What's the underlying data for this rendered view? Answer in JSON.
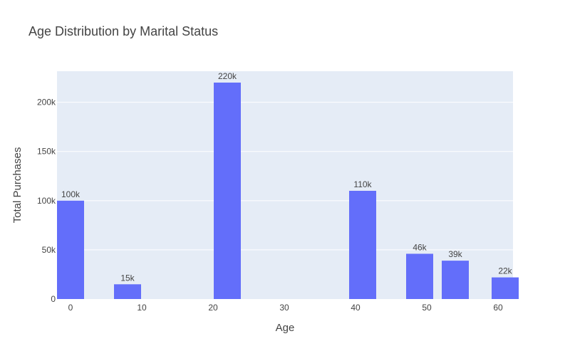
{
  "chart_data": {
    "type": "bar",
    "title": "Age Distribution by Marital Status",
    "xlabel": "Age",
    "ylabel": "Total Purchases",
    "x": [
      0,
      8,
      22,
      41,
      49,
      54,
      61
    ],
    "values": [
      100000,
      15000,
      220000,
      110000,
      46000,
      39000,
      22000
    ],
    "value_labels": [
      "100k",
      "15k",
      "220k",
      "110k",
      "46k",
      "39k",
      "22k"
    ],
    "xticks": [
      0,
      10,
      20,
      30,
      40,
      50,
      60
    ],
    "xtick_labels": [
      "0",
      "10",
      "20",
      "30",
      "40",
      "50",
      "60"
    ],
    "yticks": [
      0,
      50000,
      100000,
      150000,
      200000
    ],
    "ytick_labels": [
      "0",
      "50k",
      "100k",
      "150k",
      "200k"
    ],
    "xlim": [
      -1.9,
      62.1
    ],
    "ylim": [
      0,
      231579
    ],
    "grid": true,
    "legend": "none",
    "colors": {
      "bar": "#636efa",
      "plot_bg": "#e5ecf6",
      "grid": "#ffffff"
    }
  }
}
